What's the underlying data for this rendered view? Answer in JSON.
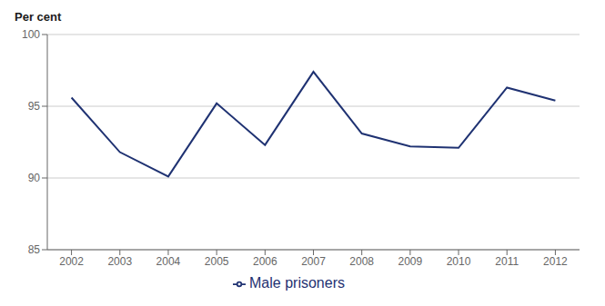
{
  "chart_data": {
    "type": "line",
    "ylabel": "Per cent",
    "x": [
      2002,
      2003,
      2004,
      2005,
      2006,
      2007,
      2008,
      2009,
      2010,
      2011,
      2012
    ],
    "series": [
      {
        "name": "Male prisoners",
        "color": "#1f3272",
        "values": [
          95.6,
          91.8,
          90.1,
          95.2,
          92.3,
          97.4,
          93.1,
          92.2,
          92.1,
          96.3,
          95.4
        ]
      }
    ],
    "xlim": [
      2001.5,
      2012.5
    ],
    "xticks": [
      2002,
      2003,
      2004,
      2005,
      2006,
      2007,
      2008,
      2009,
      2010,
      2011,
      2012
    ],
    "ylim": [
      85,
      100
    ],
    "yticks": [
      85,
      90,
      95,
      100
    ],
    "grid": "y",
    "legend": "bottom"
  }
}
